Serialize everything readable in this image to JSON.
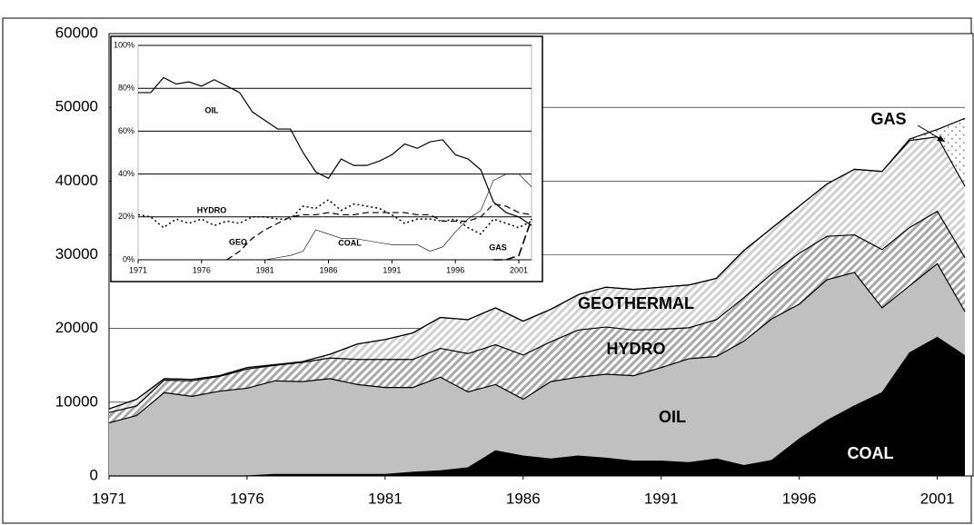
{
  "chart_data": [
    {
      "type": "area",
      "stacked": true,
      "x": [
        1971,
        1972,
        1973,
        1974,
        1975,
        1976,
        1977,
        1978,
        1979,
        1980,
        1981,
        1982,
        1983,
        1984,
        1985,
        1986,
        1987,
        1988,
        1989,
        1990,
        1991,
        1992,
        1993,
        1994,
        1995,
        1996,
        1997,
        1998,
        1999,
        2000,
        2001,
        2002
      ],
      "series": [
        {
          "name": "COAL",
          "color": "#000000",
          "pattern": "solid",
          "values": [
            0,
            0,
            0,
            0,
            0,
            0,
            200,
            200,
            200,
            200,
            200,
            500,
            700,
            1100,
            3400,
            2700,
            2300,
            2700,
            2400,
            2000,
            2000,
            1800,
            2300,
            1400,
            2100,
            5000,
            7500,
            9500,
            11300,
            16700,
            18800,
            16300
          ]
        },
        {
          "name": "OIL",
          "color": "#c0c0c0",
          "pattern": "solid",
          "values": [
            7200,
            8200,
            11300,
            10800,
            11500,
            11900,
            12700,
            12600,
            13000,
            12200,
            11800,
            11500,
            12700,
            10300,
            9000,
            7700,
            10500,
            10700,
            11400,
            11600,
            12700,
            14100,
            13900,
            16900,
            19200,
            18300,
            19100,
            18100,
            11500,
            9100,
            10000,
            6000
          ]
        },
        {
          "name": "HYDRO",
          "color": "#a8a8a8",
          "pattern": "hatch",
          "values": [
            1400,
            1300,
            1700,
            2100,
            2000,
            2600,
            2100,
            2600,
            2800,
            3400,
            3800,
            3800,
            3900,
            5200,
            5400,
            6000,
            5400,
            6400,
            6400,
            6200,
            5200,
            4200,
            5000,
            5900,
            6100,
            6900,
            5900,
            5100,
            7900,
            7900,
            7100,
            7300
          ]
        },
        {
          "name": "GEOTHERMAL",
          "color": "#d0d0d0",
          "pattern": "hatch",
          "values": [
            500,
            900,
            200,
            200,
            100,
            200,
            100,
            100,
            500,
            2100,
            2700,
            3600,
            4200,
            4600,
            5000,
            4600,
            4400,
            4800,
            5400,
            5500,
            5700,
            5800,
            5600,
            6400,
            6200,
            6400,
            7100,
            8900,
            10600,
            11800,
            10100,
            9700
          ]
        },
        {
          "name": "GAS",
          "color": "#707070",
          "pattern": "dots",
          "values": [
            0,
            0,
            0,
            0,
            0,
            0,
            0,
            0,
            0,
            0,
            0,
            0,
            0,
            0,
            0,
            0,
            0,
            0,
            0,
            0,
            0,
            0,
            0,
            0,
            0,
            0,
            0,
            0,
            0,
            200,
            1000,
            9200
          ]
        }
      ],
      "xlim": [
        1971,
        2002
      ],
      "xticks": [
        1971,
        1976,
        1981,
        1986,
        1991,
        1996,
        2001
      ],
      "ylim": [
        0,
        60000
      ],
      "yticks": [
        0,
        10000,
        20000,
        30000,
        40000,
        50000,
        60000
      ],
      "grid": true
    },
    {
      "type": "line",
      "x": [
        1971,
        1972,
        1973,
        1974,
        1975,
        1976,
        1977,
        1978,
        1979,
        1980,
        1981,
        1982,
        1983,
        1984,
        1985,
        1986,
        1987,
        1988,
        1989,
        1990,
        1991,
        1992,
        1993,
        1994,
        1995,
        1996,
        1997,
        1998,
        1999,
        2000,
        2001,
        2002
      ],
      "series": [
        {
          "name": "OIL",
          "color": "#000000",
          "dash": "solid",
          "values": [
            78,
            78,
            85,
            82,
            83,
            81,
            84,
            81,
            78,
            69,
            65,
            61,
            61,
            50,
            41,
            38,
            47,
            44,
            44,
            46,
            49,
            54,
            52,
            55,
            56,
            49,
            47,
            42,
            27,
            22,
            20,
            16
          ]
        },
        {
          "name": "HYDRO",
          "color": "#000000",
          "dash": "dotted",
          "values": [
            21,
            20,
            15,
            19,
            17,
            19,
            16,
            18,
            17,
            20,
            20,
            19,
            19,
            25,
            24,
            28,
            23,
            26,
            25,
            24,
            21,
            17,
            19,
            19,
            18,
            19,
            15,
            12,
            19,
            17,
            15,
            18
          ]
        },
        {
          "name": "GEO",
          "color": "#000000",
          "dash": "dashed",
          "values": [
            null,
            null,
            null,
            null,
            null,
            null,
            null,
            0,
            4,
            10,
            14,
            17,
            20,
            21,
            21,
            22,
            21,
            21,
            22,
            22,
            22,
            22,
            21,
            21,
            18,
            18,
            18,
            20,
            26,
            25,
            22,
            21
          ]
        },
        {
          "name": "COAL",
          "color": "#000000",
          "dash": "thin",
          "values": [
            0,
            0,
            0,
            0,
            0,
            0,
            0,
            0,
            0,
            0,
            0,
            1,
            2,
            4,
            14,
            12,
            10,
            10,
            9,
            8,
            7,
            7,
            7,
            4,
            6,
            13,
            19,
            23,
            37,
            40,
            40,
            34
          ]
        },
        {
          "name": "GAS",
          "color": "#000000",
          "dash": "long-dashed",
          "values": [
            null,
            null,
            null,
            null,
            null,
            null,
            null,
            null,
            null,
            null,
            null,
            null,
            null,
            null,
            null,
            null,
            null,
            null,
            null,
            null,
            null,
            null,
            null,
            null,
            null,
            null,
            null,
            null,
            0,
            0,
            2,
            19
          ]
        }
      ],
      "xlim": [
        1971,
        2002
      ],
      "xticks": [
        1971,
        1976,
        1981,
        1986,
        1991,
        1996,
        2001
      ],
      "ylim": [
        0,
        100
      ],
      "yticks": [
        {
          "value": 0,
          "label": "0%"
        },
        {
          "value": 20,
          "label": "20%"
        },
        {
          "value": 40,
          "label": "40%"
        },
        {
          "value": 60,
          "label": "60%"
        },
        {
          "value": 80,
          "label": "80%"
        },
        {
          "value": 100,
          "label": "100%"
        }
      ],
      "grid": true
    }
  ]
}
